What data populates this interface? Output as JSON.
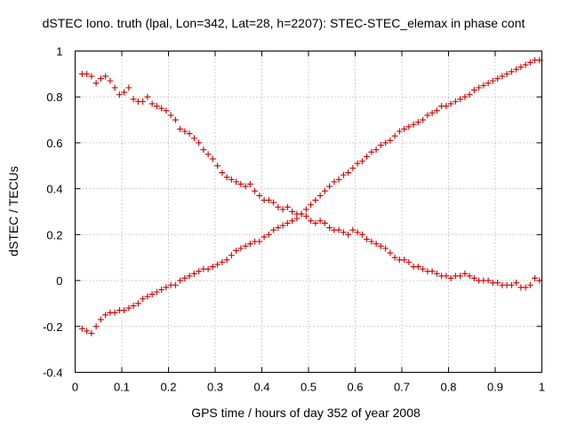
{
  "chart_data": {
    "type": "scatter",
    "title": "dSTEC Iono. truth (lpal, Lon=342, Lat=28, h=2207): STEC-STEC_elemax in phase cont",
    "xlabel": "GPS time / hours of day 352 of year 2008",
    "ylabel": "dSTEC  / TECUs",
    "xlim": [
      0,
      1
    ],
    "ylim": [
      -0.4,
      1
    ],
    "x_ticks": [
      0,
      0.1,
      0.2,
      0.3,
      0.4,
      0.5,
      0.6,
      0.7,
      0.8,
      0.9,
      1
    ],
    "x_tick_labels": [
      "0",
      "0.1",
      "0.2",
      "0.3",
      "0.4",
      "0.5",
      "0.6",
      "0.7",
      "0.8",
      "0.9",
      "1"
    ],
    "y_ticks": [
      -0.4,
      -0.2,
      0,
      0.2,
      0.4,
      0.6,
      0.8,
      1
    ],
    "y_tick_labels": [
      "-0.4",
      "-0.2",
      "0",
      "0.2",
      "0.4",
      "0.6",
      "0.8",
      "1"
    ],
    "grid": true,
    "marker": "+",
    "marker_color": "#cc0000",
    "series": [
      {
        "x": [
          0.015,
          0.025,
          0.035,
          0.045,
          0.055,
          0.065,
          0.075,
          0.085,
          0.095,
          0.105,
          0.115,
          0.125,
          0.135,
          0.145,
          0.155,
          0.165,
          0.175,
          0.185,
          0.195,
          0.205,
          0.215,
          0.225,
          0.235,
          0.245,
          0.255,
          0.265,
          0.275,
          0.285,
          0.295,
          0.305,
          0.315,
          0.325,
          0.335,
          0.345,
          0.355,
          0.365,
          0.375,
          0.385,
          0.395,
          0.405,
          0.415,
          0.425,
          0.435,
          0.445,
          0.455,
          0.465,
          0.475,
          0.485,
          0.495,
          0.505,
          0.515,
          0.525,
          0.535,
          0.545,
          0.555,
          0.565,
          0.575,
          0.585,
          0.595,
          0.605,
          0.615,
          0.625,
          0.635,
          0.645,
          0.655,
          0.665,
          0.675,
          0.685,
          0.695,
          0.705,
          0.715,
          0.725,
          0.735,
          0.745,
          0.755,
          0.765,
          0.775,
          0.785,
          0.795,
          0.805,
          0.815,
          0.825,
          0.835,
          0.845,
          0.855,
          0.865,
          0.875,
          0.885,
          0.895,
          0.905,
          0.915,
          0.925,
          0.935,
          0.945,
          0.955,
          0.965,
          0.975,
          0.985,
          0.995
        ],
        "y": [
          0.9,
          0.9,
          0.89,
          0.86,
          0.88,
          0.89,
          0.87,
          0.84,
          0.81,
          0.82,
          0.84,
          0.79,
          0.78,
          0.78,
          0.8,
          0.77,
          0.76,
          0.75,
          0.74,
          0.72,
          0.7,
          0.66,
          0.65,
          0.64,
          0.62,
          0.6,
          0.57,
          0.55,
          0.53,
          0.5,
          0.47,
          0.45,
          0.44,
          0.43,
          0.42,
          0.41,
          0.42,
          0.39,
          0.37,
          0.35,
          0.35,
          0.34,
          0.32,
          0.31,
          0.32,
          0.3,
          0.29,
          0.29,
          0.28,
          0.26,
          0.25,
          0.26,
          0.25,
          0.23,
          0.22,
          0.22,
          0.21,
          0.2,
          0.22,
          0.21,
          0.2,
          0.18,
          0.17,
          0.16,
          0.15,
          0.14,
          0.12,
          0.1,
          0.09,
          0.09,
          0.08,
          0.06,
          0.06,
          0.05,
          0.04,
          0.04,
          0.03,
          0.02,
          0.02,
          0.01,
          0.02,
          0.02,
          0.03,
          0.02,
          0.01,
          0.0,
          0.0,
          0.0,
          -0.01,
          -0.01,
          -0.02,
          -0.02,
          -0.02,
          -0.01,
          -0.03,
          -0.03,
          -0.02,
          0.01,
          0.0
        ]
      },
      {
        "x": [
          0.015,
          0.025,
          0.035,
          0.045,
          0.055,
          0.065,
          0.075,
          0.085,
          0.095,
          0.105,
          0.115,
          0.125,
          0.135,
          0.145,
          0.155,
          0.165,
          0.175,
          0.185,
          0.195,
          0.205,
          0.215,
          0.225,
          0.235,
          0.245,
          0.255,
          0.265,
          0.275,
          0.285,
          0.295,
          0.305,
          0.315,
          0.325,
          0.335,
          0.345,
          0.355,
          0.365,
          0.375,
          0.385,
          0.395,
          0.405,
          0.415,
          0.425,
          0.435,
          0.445,
          0.455,
          0.465,
          0.475,
          0.485,
          0.495,
          0.505,
          0.515,
          0.525,
          0.535,
          0.545,
          0.555,
          0.565,
          0.575,
          0.585,
          0.595,
          0.605,
          0.615,
          0.625,
          0.635,
          0.645,
          0.655,
          0.665,
          0.675,
          0.685,
          0.695,
          0.705,
          0.715,
          0.725,
          0.735,
          0.745,
          0.755,
          0.765,
          0.775,
          0.785,
          0.795,
          0.805,
          0.815,
          0.825,
          0.835,
          0.845,
          0.855,
          0.865,
          0.875,
          0.885,
          0.895,
          0.905,
          0.915,
          0.925,
          0.935,
          0.945,
          0.955,
          0.965,
          0.975,
          0.985,
          0.995
        ],
        "y": [
          -0.21,
          -0.22,
          -0.23,
          -0.2,
          -0.17,
          -0.15,
          -0.14,
          -0.14,
          -0.13,
          -0.13,
          -0.12,
          -0.11,
          -0.1,
          -0.08,
          -0.07,
          -0.06,
          -0.05,
          -0.04,
          -0.03,
          -0.02,
          -0.02,
          0.0,
          0.01,
          0.02,
          0.03,
          0.04,
          0.05,
          0.05,
          0.06,
          0.07,
          0.08,
          0.09,
          0.11,
          0.13,
          0.14,
          0.15,
          0.16,
          0.17,
          0.17,
          0.19,
          0.2,
          0.22,
          0.23,
          0.24,
          0.25,
          0.26,
          0.27,
          0.29,
          0.31,
          0.33,
          0.35,
          0.37,
          0.39,
          0.41,
          0.43,
          0.44,
          0.46,
          0.47,
          0.49,
          0.51,
          0.52,
          0.54,
          0.56,
          0.57,
          0.59,
          0.6,
          0.61,
          0.63,
          0.65,
          0.66,
          0.67,
          0.68,
          0.69,
          0.7,
          0.72,
          0.73,
          0.74,
          0.76,
          0.76,
          0.77,
          0.78,
          0.79,
          0.8,
          0.81,
          0.83,
          0.84,
          0.85,
          0.86,
          0.87,
          0.88,
          0.89,
          0.9,
          0.91,
          0.92,
          0.93,
          0.94,
          0.95,
          0.96,
          0.96
        ]
      }
    ]
  }
}
